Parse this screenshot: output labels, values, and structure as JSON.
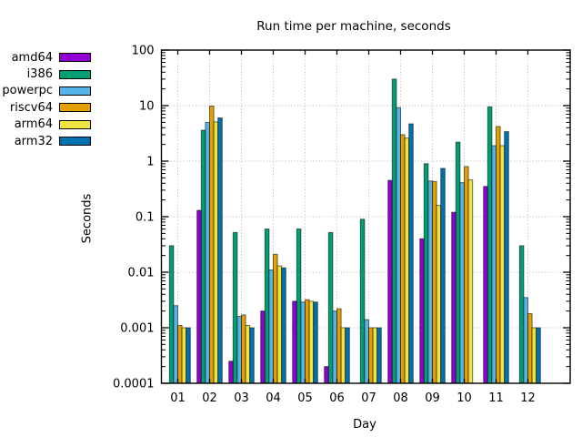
{
  "chart_data": {
    "type": "bar",
    "title": "Run time per machine, seconds",
    "xlabel": "Day",
    "ylabel": "Seconds",
    "y_scale": "log",
    "ylim": [
      0.0001,
      100
    ],
    "y_tick_labels": [
      "100",
      "10",
      "1",
      "0.1",
      "0.01",
      "0.001",
      "0.0001"
    ],
    "grid": "dotted",
    "legend_position": "outside-top-left",
    "categories": [
      "01",
      "02",
      "03",
      "04",
      "05",
      "06",
      "07",
      "08",
      "09",
      "10",
      "11",
      "12"
    ],
    "series": [
      {
        "name": "amd64",
        "color": "#9400D3",
        "values": [
          null,
          0.13,
          0.00025,
          0.002,
          0.003,
          0.0002,
          null,
          0.45,
          0.04,
          0.12,
          0.35,
          null
        ]
      },
      {
        "name": "i386",
        "color": "#009E73",
        "values": [
          0.03,
          3.6,
          0.052,
          0.06,
          0.06,
          0.052,
          0.09,
          30,
          0.9,
          2.2,
          9.5,
          0.03
        ]
      },
      {
        "name": "powerpc",
        "color": "#56B4E9",
        "values": [
          0.0025,
          5.0,
          0.0016,
          0.011,
          0.0029,
          0.002,
          0.0014,
          9.2,
          0.44,
          0.41,
          1.9,
          0.0035
        ]
      },
      {
        "name": "riscv64",
        "color": "#E69F00",
        "values": [
          0.0011,
          9.8,
          0.0017,
          0.021,
          0.0032,
          0.0022,
          0.001,
          3.0,
          0.43,
          0.8,
          4.2,
          0.0018
        ]
      },
      {
        "name": "arm64",
        "color": "#F0E442",
        "values": [
          0.001,
          5.1,
          0.0011,
          0.013,
          0.003,
          0.001,
          0.001,
          2.6,
          0.16,
          0.46,
          1.9,
          0.001
        ]
      },
      {
        "name": "arm32",
        "color": "#0072B2",
        "values": [
          0.001,
          6.0,
          0.001,
          0.012,
          0.0029,
          0.001,
          0.001,
          4.7,
          0.74,
          null,
          3.4,
          0.001
        ]
      }
    ]
  }
}
